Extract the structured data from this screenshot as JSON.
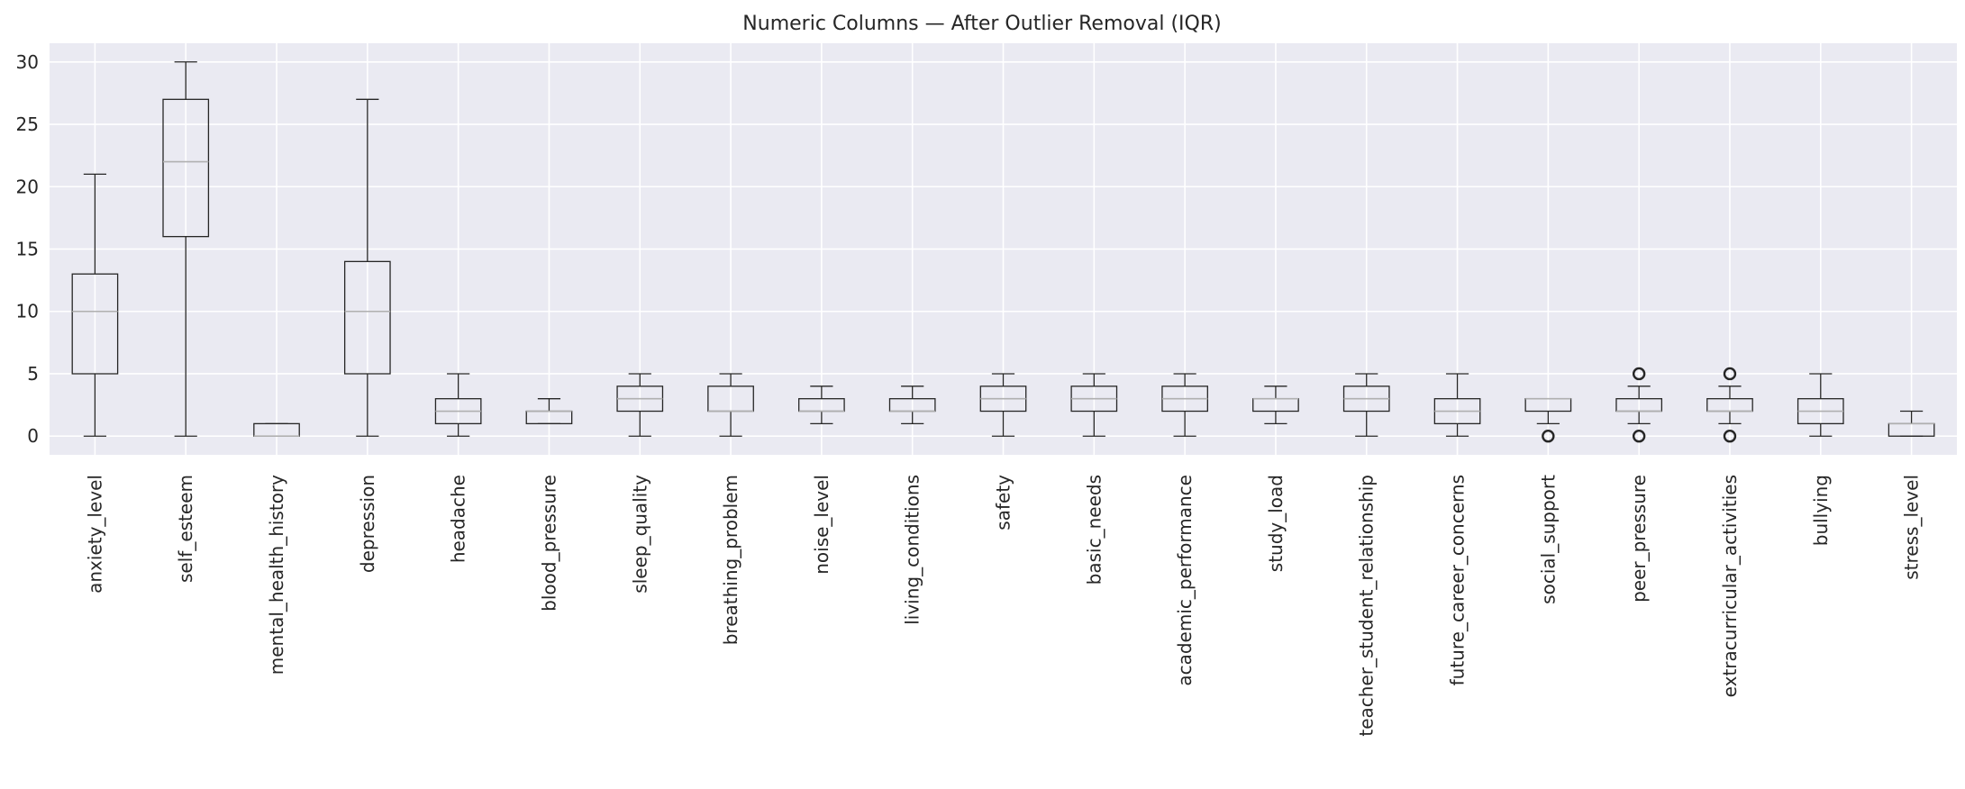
{
  "chart_data": {
    "type": "box",
    "title": "Numeric Columns — After Outlier Removal (IQR)",
    "xlabel": "",
    "ylabel": "",
    "ylim": [
      -1.5,
      31.5
    ],
    "yticks": [
      0,
      5,
      10,
      15,
      20,
      25,
      30
    ],
    "grid": true,
    "colors": {
      "background": "#eaeaf2",
      "grid": "#ffffff",
      "box": "#262626",
      "median": "#b0b0b0",
      "text": "#262626"
    },
    "boxes": [
      {
        "label": "anxiety_level",
        "min": 0,
        "q1": 5,
        "median": 10,
        "q3": 13,
        "max": 21,
        "outliers": []
      },
      {
        "label": "self_esteem",
        "min": 0,
        "q1": 16,
        "median": 22,
        "q3": 27,
        "max": 30,
        "outliers": []
      },
      {
        "label": "mental_health_history",
        "min": 0,
        "q1": 0,
        "median": 0,
        "q3": 1,
        "max": 1,
        "outliers": []
      },
      {
        "label": "depression",
        "min": 0,
        "q1": 5,
        "median": 10,
        "q3": 14,
        "max": 27,
        "outliers": []
      },
      {
        "label": "headache",
        "min": 0,
        "q1": 1,
        "median": 2,
        "q3": 3,
        "max": 5,
        "outliers": []
      },
      {
        "label": "blood_pressure",
        "min": 1,
        "q1": 1,
        "median": 2,
        "q3": 2,
        "max": 3,
        "outliers": []
      },
      {
        "label": "sleep_quality",
        "min": 0,
        "q1": 2,
        "median": 3,
        "q3": 4,
        "max": 5,
        "outliers": []
      },
      {
        "label": "breathing_problem",
        "min": 0,
        "q1": 2,
        "median": 2,
        "q3": 4,
        "max": 5,
        "outliers": []
      },
      {
        "label": "noise_level",
        "min": 1,
        "q1": 2,
        "median": 2,
        "q3": 3,
        "max": 4,
        "outliers": []
      },
      {
        "label": "living_conditions",
        "min": 1,
        "q1": 2,
        "median": 2,
        "q3": 3,
        "max": 4,
        "outliers": []
      },
      {
        "label": "safety",
        "min": 0,
        "q1": 2,
        "median": 3,
        "q3": 4,
        "max": 5,
        "outliers": []
      },
      {
        "label": "basic_needs",
        "min": 0,
        "q1": 2,
        "median": 3,
        "q3": 4,
        "max": 5,
        "outliers": []
      },
      {
        "label": "academic_performance",
        "min": 0,
        "q1": 2,
        "median": 3,
        "q3": 4,
        "max": 5,
        "outliers": []
      },
      {
        "label": "study_load",
        "min": 1,
        "q1": 2,
        "median": 3,
        "q3": 3,
        "max": 4,
        "outliers": []
      },
      {
        "label": "teacher_student_relationship",
        "min": 0,
        "q1": 2,
        "median": 3,
        "q3": 4,
        "max": 5,
        "outliers": []
      },
      {
        "label": "future_career_concerns",
        "min": 0,
        "q1": 1,
        "median": 2,
        "q3": 3,
        "max": 5,
        "outliers": []
      },
      {
        "label": "social_support",
        "min": 1,
        "q1": 2,
        "median": 3,
        "q3": 3,
        "max": 3,
        "outliers": [
          0
        ]
      },
      {
        "label": "peer_pressure",
        "min": 1,
        "q1": 2,
        "median": 2,
        "q3": 3,
        "max": 4,
        "outliers": [
          0,
          5
        ]
      },
      {
        "label": "extracurricular_activities",
        "min": 1,
        "q1": 2,
        "median": 2,
        "q3": 3,
        "max": 4,
        "outliers": [
          0,
          5
        ]
      },
      {
        "label": "bullying",
        "min": 0,
        "q1": 1,
        "median": 2,
        "q3": 3,
        "max": 5,
        "outliers": []
      },
      {
        "label": "stress_level",
        "min": 0,
        "q1": 0,
        "median": 1,
        "q3": 1,
        "max": 2,
        "outliers": []
      }
    ]
  }
}
